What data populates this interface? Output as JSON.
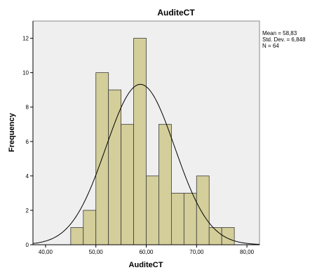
{
  "chart_data": {
    "type": "bar",
    "title": "AuditeCT",
    "xlabel": "AuditeCT",
    "ylabel": "Frequency",
    "bin_width": 2.5,
    "bin_starts": [
      45,
      47.5,
      50,
      52.5,
      55,
      57.5,
      60,
      62.5,
      65,
      67.5,
      70,
      72.5,
      75
    ],
    "values": [
      1,
      2,
      10,
      9,
      7,
      12,
      4,
      7,
      3,
      3,
      4,
      1,
      1
    ],
    "xlim": [
      37.5,
      82.5
    ],
    "ylim": [
      0,
      13
    ],
    "x_ticks": [
      40,
      50,
      60,
      70,
      80
    ],
    "x_tick_labels": [
      "40,00",
      "50,00",
      "60,00",
      "70,00",
      "80,00"
    ],
    "y_ticks": [
      0,
      2,
      4,
      6,
      8,
      10,
      12
    ],
    "y_tick_labels": [
      "0",
      "2",
      "4",
      "6",
      "8",
      "10",
      "12"
    ],
    "normal_curve": {
      "mean": 58.83,
      "sd": 6.848,
      "n": 64
    },
    "stats_text": [
      "Mean = 58,83",
      "Std. Dev. = 6,848",
      "N = 64"
    ],
    "grid": false,
    "legend": "top-right",
    "colors": {
      "bar_fill": "#d3ce9a",
      "bar_stroke": "#3a3a3a",
      "plot_bg": "#efefef",
      "curve": "#000000"
    }
  }
}
